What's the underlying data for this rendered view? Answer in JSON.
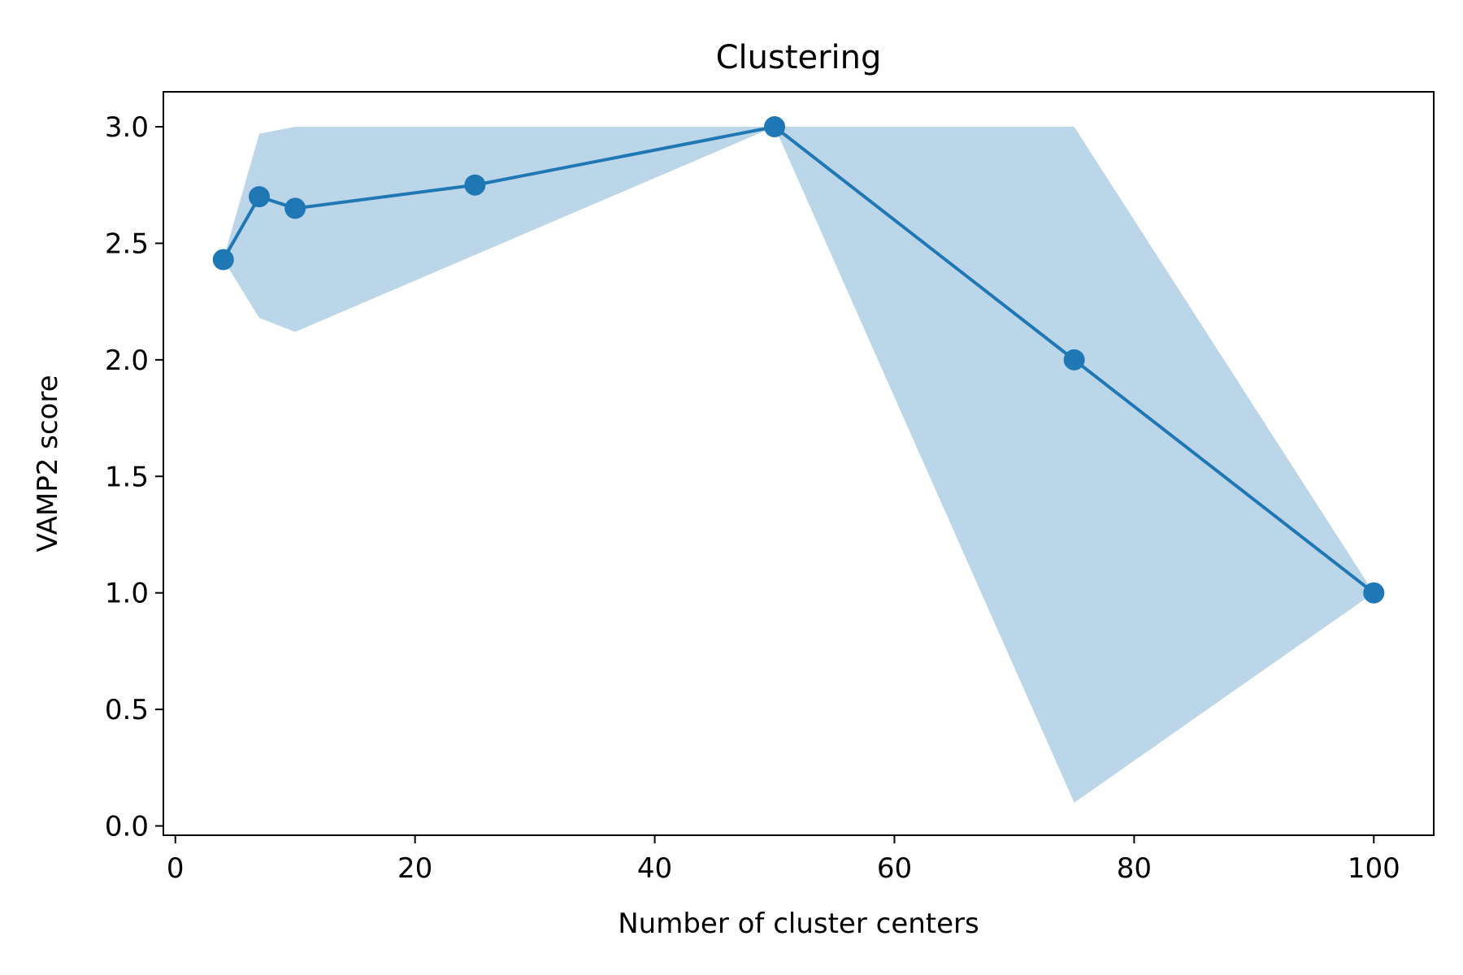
{
  "chart_data": {
    "type": "line",
    "title": "Clustering",
    "xlabel": "Number of cluster centers",
    "ylabel": "VAMP2 score",
    "xlim": [
      -1,
      105
    ],
    "ylim": [
      -0.04,
      3.15
    ],
    "xticks": [
      0,
      20,
      40,
      60,
      80,
      100
    ],
    "xtick_labels": [
      "0",
      "20",
      "40",
      "60",
      "80",
      "100"
    ],
    "yticks": [
      0.0,
      0.5,
      1.0,
      1.5,
      2.0,
      2.5,
      3.0
    ],
    "ytick_labels": [
      "0.0",
      "0.5",
      "1.0",
      "1.5",
      "2.0",
      "2.5",
      "3.0"
    ],
    "grid": false,
    "colors": {
      "line": "#1f77b4",
      "band": "#1f77b4",
      "band_opacity": 0.3
    },
    "series": [
      {
        "x": [
          4,
          7,
          10,
          25,
          50,
          75,
          100
        ],
        "y": [
          2.43,
          2.7,
          2.65,
          2.75,
          3.0,
          2.0,
          1.0
        ],
        "lower": [
          2.43,
          2.18,
          2.12,
          2.45,
          3.0,
          0.1,
          1.0
        ],
        "upper": [
          2.43,
          2.97,
          3.0,
          3.0,
          3.0,
          3.0,
          1.0
        ]
      }
    ]
  }
}
